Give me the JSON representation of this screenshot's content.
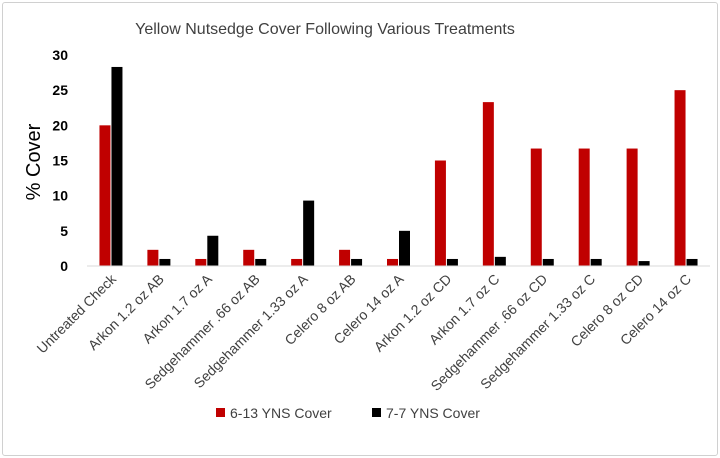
{
  "chart_data": {
    "type": "bar",
    "title": "Yellow Nutsedge Cover Following Various Treatments",
    "xlabel": "",
    "ylabel": "% Cover",
    "ylim": [
      0,
      30
    ],
    "yticks": [
      "0",
      "5",
      "10",
      "15",
      "20",
      "25",
      "30"
    ],
    "grid": false,
    "legend_position": "bottom",
    "categories": [
      "Untreated Check",
      "Arkon 1.2 oz AB",
      "Arkon 1.7 oz A",
      "Sedgehammer .66 oz AB",
      "Sedgehammer 1.33 oz A",
      "Celero 8 oz AB",
      "Celero 14 oz A",
      "Arkon 1.2 oz CD",
      "Arkon 1.7 oz C",
      "Sedgehammer .66 oz CD",
      "Sedgehammer 1.33 oz C",
      "Celero 8 oz CD",
      "Celero 14 oz C"
    ],
    "series": [
      {
        "name": "6-13 YNS Cover",
        "color": "#c00000",
        "values": [
          20,
          2.3,
          1,
          2.3,
          1,
          2.3,
          1,
          15,
          23.3,
          16.7,
          16.7,
          16.7,
          25
        ]
      },
      {
        "name": "7-7 YNS Cover",
        "color": "#000000",
        "values": [
          28.3,
          1,
          4.3,
          1,
          9.3,
          1,
          5,
          1,
          1.3,
          1,
          1,
          0.7,
          1
        ]
      }
    ]
  }
}
